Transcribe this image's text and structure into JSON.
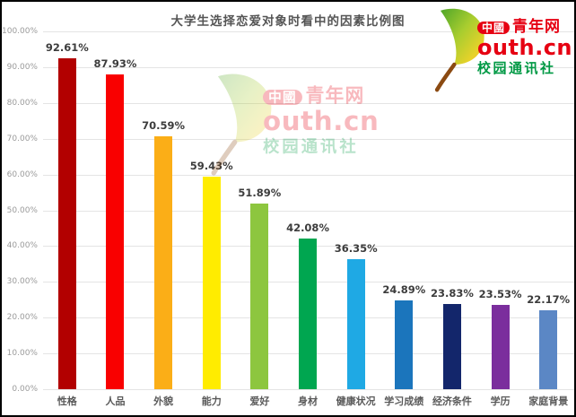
{
  "chart_data": {
    "type": "bar",
    "title": "大学生选择恋爱对象时看中的因素比例图",
    "categories": [
      "性格",
      "人品",
      "外貌",
      "能力",
      "爱好",
      "身材",
      "健康状况",
      "学习成绩",
      "经济条件",
      "学历",
      "家庭背景"
    ],
    "values": [
      92.61,
      87.93,
      70.59,
      59.43,
      51.89,
      42.08,
      36.35,
      24.89,
      23.83,
      23.53,
      22.17
    ],
    "value_labels": [
      "92.61%",
      "87.93%",
      "70.59%",
      "59.43%",
      "51.89%",
      "42.08%",
      "36.35%",
      "24.89%",
      "23.83%",
      "23.53%",
      "22.17%"
    ],
    "bar_colors": [
      "#b20000",
      "#f90000",
      "#fbae17",
      "#ffec00",
      "#8dc63f",
      "#00a650",
      "#1fa9e4",
      "#1b75bc",
      "#13266b",
      "#7b2e9d",
      "#5b87c5"
    ],
    "xlabel": "",
    "ylabel": "",
    "ylim": [
      0,
      100
    ],
    "ytick_step": 10,
    "ytick_labels": [
      "0.00%",
      "10.00%",
      "20.00%",
      "30.00%",
      "40.00%",
      "50.00%",
      "60.00%",
      "70.00%",
      "80.00%",
      "90.00%",
      "100.00%"
    ],
    "grid": true,
    "legend": false
  },
  "logo": {
    "badge": "中國",
    "brand_cn": "青年网",
    "brand_en": "outh.cn",
    "subtitle": "校园通讯社",
    "red": "#e60012",
    "green": "#009944",
    "leaf_colors": [
      "#6cb52d",
      "#c5d92d",
      "#f7a81b",
      "#8b4a12"
    ]
  }
}
